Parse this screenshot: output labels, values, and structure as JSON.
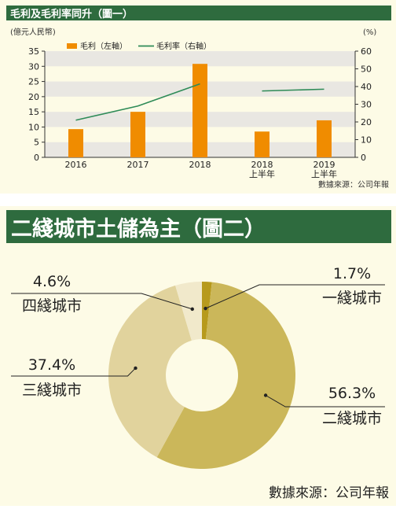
{
  "chart_data": [
    {
      "type": "bar",
      "title": "毛利及毛利率同升（圖一）",
      "y_left_unit": "(億元人民幣)",
      "y_right_unit": "(%)",
      "legend": [
        {
          "label": "毛利（左軸）",
          "color": "#f08c00"
        },
        {
          "label": "毛利率（右軸）",
          "color": "#2e8b57"
        }
      ],
      "categories": [
        {
          "line1": "2016",
          "line2": ""
        },
        {
          "line1": "2017",
          "line2": ""
        },
        {
          "line1": "2018",
          "line2": ""
        },
        {
          "line1": "2018",
          "line2": "上半年"
        },
        {
          "line1": "2019",
          "line2": "上半年"
        }
      ],
      "series": [
        {
          "name": "毛利（左軸）",
          "axis": "left",
          "values": [
            9.3,
            15,
            30.8,
            8.5,
            12.2
          ]
        },
        {
          "name": "毛利率（右軸）",
          "axis": "right",
          "values": [
            21,
            29,
            41.5,
            37.5,
            38.5
          ]
        }
      ],
      "line_segments": [
        [
          0,
          2
        ],
        [
          3,
          4
        ]
      ],
      "ylim_left": [
        0,
        35
      ],
      "yticks_left": [
        0,
        5,
        10,
        15,
        20,
        25,
        30,
        35
      ],
      "ylim_right": [
        0,
        60
      ],
      "yticks_right": [
        0,
        10,
        20,
        30,
        40,
        50,
        60
      ],
      "source": "數據來源：公司年報",
      "colors": {
        "title_bg": "#2e6b3e",
        "bar": "#f08c00",
        "line": "#2e8b57",
        "band": "#e9e7e2"
      }
    },
    {
      "type": "pie",
      "donut": true,
      "title": "二綫城市土儲為主（圖二）",
      "slices": [
        {
          "label": "一綫城市",
          "value": 1.7,
          "value_label": "1.7%",
          "color": "#b79a1c"
        },
        {
          "label": "二綫城市",
          "value": 56.3,
          "value_label": "56.3%",
          "color": "#cbb75a"
        },
        {
          "label": "三綫城市",
          "value": 37.4,
          "value_label": "37.4%",
          "color": "#e1d39d"
        },
        {
          "label": "四綫城市",
          "value": 4.6,
          "value_label": "4.6%",
          "color": "#f1e9cb"
        }
      ],
      "source": "數據來源：公司年報",
      "colors": {
        "title_bg": "#2e6b3e"
      }
    }
  ]
}
